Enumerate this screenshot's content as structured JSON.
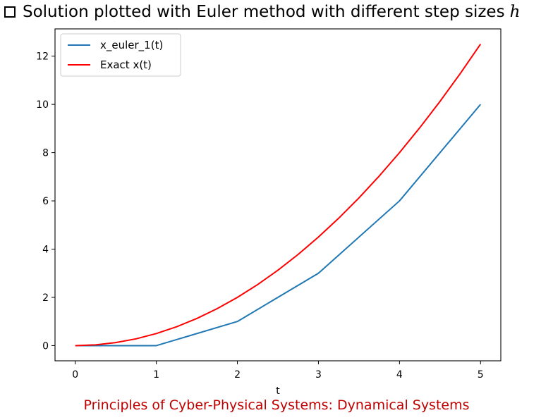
{
  "slide": {
    "heading": "Solution plotted with Euler method with different step sizes",
    "heading_variable": "h",
    "footer": "Principles of Cyber-Physical Systems: Dynamical Systems"
  },
  "chart_data": {
    "type": "line",
    "xlabel": "t",
    "ylabel": "",
    "xlim": [
      -0.25,
      5.25
    ],
    "ylim": [
      -0.63,
      13.13
    ],
    "xticks": [
      0,
      1,
      2,
      3,
      4,
      5
    ],
    "yticks": [
      0,
      2,
      4,
      6,
      8,
      10,
      12
    ],
    "grid": false,
    "legend_position": "top-left",
    "series": [
      {
        "name": "x_euler_1(t)",
        "color": "#1f77b4",
        "x": [
          0,
          1,
          2,
          3,
          4,
          5
        ],
        "y": [
          0,
          0,
          1,
          3,
          6,
          10
        ]
      },
      {
        "name": "Exact x(t)",
        "color": "#ff0000",
        "x": [
          0,
          0.25,
          0.5,
          0.75,
          1,
          1.25,
          1.5,
          1.75,
          2,
          2.25,
          2.5,
          2.75,
          3,
          3.25,
          3.5,
          3.75,
          4,
          4.25,
          4.5,
          4.75,
          5
        ],
        "y": [
          0,
          0.03125,
          0.125,
          0.28125,
          0.5,
          0.78125,
          1.125,
          1.53125,
          2,
          2.53125,
          3.125,
          3.78125,
          4.5,
          5.28125,
          6.125,
          7.03125,
          8,
          9.03125,
          10.125,
          11.28125,
          12.5
        ]
      }
    ]
  }
}
